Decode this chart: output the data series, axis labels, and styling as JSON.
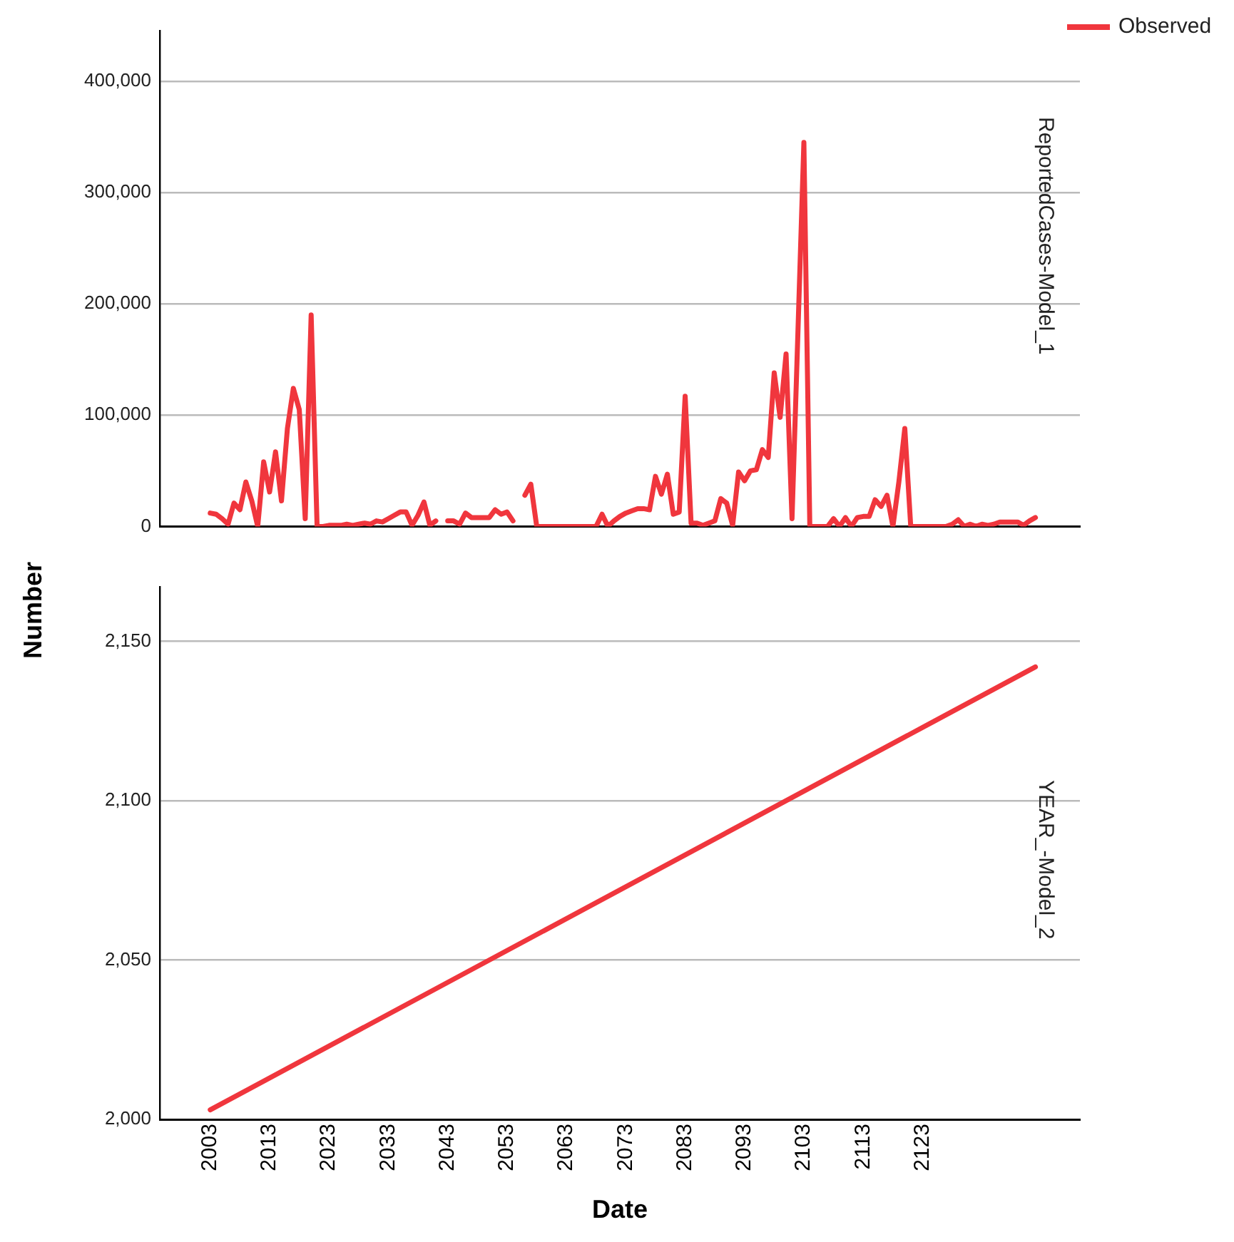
{
  "chart_data": [
    {
      "type": "line",
      "title": "ReportedCases-Model_1",
      "ylabel": "Number",
      "xlim": [
        1994.5,
        2149.5
      ],
      "ylim": [
        0,
        445000
      ],
      "yticks": [
        {
          "value": 0,
          "label": "0"
        },
        {
          "value": 100000,
          "label": "100,000"
        },
        {
          "value": 200000,
          "label": "200,000"
        },
        {
          "value": 300000,
          "label": "300,000"
        },
        {
          "value": 400000,
          "label": "400,000"
        }
      ],
      "tick_labels": "y",
      "grid": "y",
      "legend": "top right",
      "line_style": "solid",
      "marker": "none",
      "series": [
        {
          "name": "Observed",
          "color": "#f0363d",
          "x": [
            2003,
            2004,
            2005,
            2006,
            2007,
            2008,
            2009,
            2010,
            2011,
            2012,
            2013,
            2014,
            2015,
            2016,
            2017,
            2018,
            2019,
            2020,
            2021,
            2022,
            2023,
            2024,
            2025,
            2026,
            2027,
            2028,
            2029,
            2030,
            2031,
            2032,
            2033,
            2034,
            2035,
            2036,
            2037,
            2038,
            2039,
            2040,
            2041,
            2042,
            2043,
            2044,
            2045,
            2046,
            2047,
            2048,
            2049,
            2050,
            2051,
            2052,
            2053,
            2054,
            2055,
            2056,
            2057,
            2058,
            2059,
            2060,
            2061,
            2062,
            2063,
            2064,
            2065,
            2066,
            2067,
            2068,
            2069,
            2070,
            2071,
            2072,
            2073,
            2074,
            2075,
            2076,
            2077,
            2078,
            2079,
            2080,
            2081,
            2082,
            2083,
            2084,
            2085,
            2086,
            2087,
            2088,
            2089,
            2090,
            2091,
            2092,
            2093,
            2094,
            2095,
            2096,
            2097,
            2098,
            2099,
            2100,
            2101,
            2102,
            2103,
            2104,
            2105,
            2106,
            2107,
            2108,
            2109,
            2110,
            2111,
            2112,
            2113,
            2114,
            2115,
            2116,
            2117,
            2118,
            2119,
            2120,
            2121,
            2122,
            2123,
            2124,
            2125,
            2126,
            2127,
            2128,
            2129,
            2130,
            2131,
            2132,
            2133,
            2134,
            2135,
            2136,
            2137,
            2138,
            2139,
            2140,
            2141,
            2142
          ],
          "values": [
            12000,
            11000,
            7000,
            2000,
            21000,
            15000,
            40000,
            23000,
            0,
            58000,
            31000,
            67000,
            23000,
            88000,
            124000,
            105000,
            7000,
            190000,
            0,
            0,
            1000,
            1000,
            1000,
            2000,
            1000,
            2000,
            3000,
            2000,
            5000,
            4000,
            7000,
            10000,
            13000,
            13000,
            1000,
            10000,
            22000,
            1000,
            5000,
            null,
            5000,
            5000,
            2000,
            12000,
            8000,
            8000,
            8000,
            8000,
            15000,
            11000,
            13000,
            5000,
            null,
            28000,
            38000,
            0,
            0,
            0,
            0,
            0,
            0,
            0,
            0,
            0,
            0,
            0,
            11000,
            0,
            5000,
            9000,
            12000,
            14000,
            16000,
            16000,
            15000,
            45000,
            29000,
            47000,
            11000,
            13000,
            117000,
            3000,
            3000,
            1000,
            3000,
            5000,
            25000,
            21000,
            1000,
            49000,
            41000,
            50000,
            51000,
            69000,
            62000,
            138000,
            98000,
            155000,
            7000,
            175000,
            345000,
            0,
            0,
            0,
            0,
            7000,
            0,
            8000,
            0,
            8000,
            9000,
            9000,
            24000,
            18000,
            28000,
            0,
            40000,
            88000,
            0,
            0,
            0,
            0,
            0,
            0,
            0,
            2000,
            6000,
            0,
            2000,
            0,
            2000,
            1000,
            2000,
            4000,
            4000,
            4000,
            4000,
            1000,
            5000,
            8000
          ]
        }
      ]
    },
    {
      "type": "line",
      "title": "YEAR_-Model_2",
      "xlabel": "Date",
      "xlim": [
        1994.5,
        2149.5
      ],
      "xticks": [
        2003,
        2013,
        2023,
        2033,
        2043,
        2053,
        2063,
        2073,
        2083,
        2093,
        2103,
        2113,
        2123
      ],
      "ylim": [
        2000,
        2167
      ],
      "yticks": [
        {
          "value": 2000,
          "label": "2,000"
        },
        {
          "value": 2050,
          "label": "2,050"
        },
        {
          "value": 2100,
          "label": "2,100"
        },
        {
          "value": 2150,
          "label": "2,150"
        }
      ],
      "grid": "y",
      "line_style": "solid",
      "marker": "none",
      "series": [
        {
          "color": "#f0363d",
          "x": [
            2003,
            2142
          ],
          "values": [
            2003,
            2142
          ]
        }
      ]
    }
  ]
}
